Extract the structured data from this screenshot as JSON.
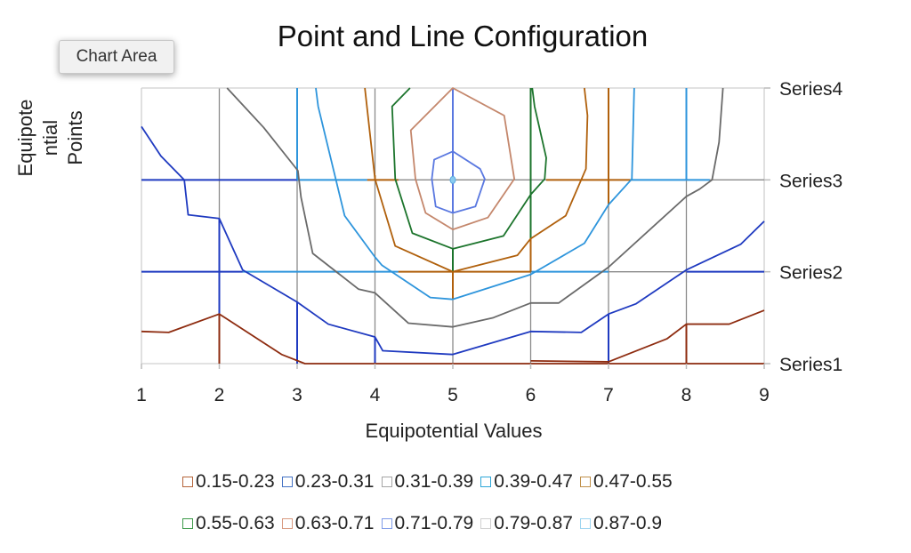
{
  "tooltip": "Chart Area",
  "chart_data": {
    "type": "contour",
    "title": "Point and Line Configuration",
    "xlabel": "Equipotential Values",
    "ylabel_lines": [
      "Equipote",
      "ntial",
      "Points"
    ],
    "x_ticks": [
      "1",
      "2",
      "3",
      "4",
      "5",
      "6",
      "7",
      "8",
      "9"
    ],
    "y_ticks": [
      "Series1",
      "Series2",
      "Series3",
      "Series4"
    ],
    "xlim": [
      1,
      9
    ],
    "ylim": [
      0,
      3
    ],
    "grid": true,
    "legend_position": "bottom",
    "levels": [
      {
        "label": "0.15-0.23",
        "color": "#B5643A",
        "line": "#8E2C10"
      },
      {
        "label": "0.23-0.31",
        "color": "#4472C4",
        "line": "#1F3AC0"
      },
      {
        "label": "0.31-0.39",
        "color": "#A5A5A5",
        "line": "#6A6A6A"
      },
      {
        "label": "0.39-0.47",
        "color": "#2EA7D8",
        "line": "#2E95DC"
      },
      {
        "label": "0.47-0.55",
        "color": "#C0904A",
        "line": "#B0600C"
      },
      {
        "label": "0.55-0.63",
        "color": "#3D9A4A",
        "line": "#1C742C"
      },
      {
        "label": "0.63-0.71",
        "color": "#D89A80",
        "line": "#C4876C"
      },
      {
        "label": "0.71-0.79",
        "color": "#7F9BE8",
        "line": "#5A78E0"
      },
      {
        "label": "0.79-0.87",
        "color": "#D0D0D0",
        "line": "#C8C8C8"
      },
      {
        "label": "0.87-0.9",
        "color": "#9ED5F0",
        "line": "#8ACBEF"
      }
    ],
    "contours": [
      {
        "level": 0,
        "closed": false,
        "points": [
          [
            1,
            0.35
          ],
          [
            1.35,
            0.34
          ],
          [
            2,
            0.54
          ],
          [
            2.8,
            0.1
          ],
          [
            3.1,
            0
          ],
          [
            9,
            0
          ]
        ]
      },
      {
        "level": 0,
        "closed": false,
        "points": [
          [
            6,
            0.03
          ],
          [
            7,
            0.02
          ],
          [
            7.75,
            0.27
          ],
          [
            8,
            0.43
          ],
          [
            8.55,
            0.43
          ],
          [
            9,
            0.58
          ]
        ]
      },
      {
        "level": 1,
        "closed": false,
        "points": [
          [
            1,
            2.58
          ],
          [
            1.25,
            2.26
          ],
          [
            1.55,
            2.0
          ],
          [
            1.6,
            1.62
          ],
          [
            2,
            1.58
          ],
          [
            2.3,
            1.02
          ],
          [
            3,
            0.67
          ],
          [
            3.4,
            0.43
          ],
          [
            4,
            0.29
          ],
          [
            4.1,
            0.14
          ],
          [
            5,
            0.1
          ],
          [
            6,
            0.35
          ],
          [
            6.65,
            0.34
          ],
          [
            7,
            0.54
          ],
          [
            7.35,
            0.65
          ],
          [
            8,
            1.02
          ],
          [
            8.7,
            1.3
          ],
          [
            9,
            1.55
          ]
        ]
      },
      {
        "level": 2,
        "closed": false,
        "points": [
          [
            2.1,
            3
          ],
          [
            2.57,
            2.57
          ],
          [
            3.01,
            2.1
          ],
          [
            3.05,
            1.81
          ],
          [
            3.2,
            1.2
          ],
          [
            3.79,
            0.81
          ],
          [
            4,
            0.77
          ],
          [
            4.43,
            0.44
          ],
          [
            5,
            0.4
          ],
          [
            5.52,
            0.5
          ],
          [
            6,
            0.66
          ],
          [
            6.36,
            0.66
          ],
          [
            7,
            1.05
          ],
          [
            8,
            1.82
          ],
          [
            8.17,
            1.9
          ],
          [
            8.33,
            2.0
          ],
          [
            8.42,
            2.41
          ],
          [
            8.47,
            3
          ]
        ]
      },
      {
        "level": 3,
        "closed": false,
        "points": [
          [
            3.24,
            3
          ],
          [
            3.27,
            2.8
          ],
          [
            3.61,
            1.61
          ],
          [
            4,
            1.16
          ],
          [
            4.09,
            1.07
          ],
          [
            4.71,
            0.72
          ],
          [
            5,
            0.7
          ],
          [
            6,
            0.97
          ],
          [
            6.69,
            1.31
          ],
          [
            7,
            1.73
          ],
          [
            7.3,
            2.01
          ],
          [
            7.33,
            3
          ]
        ]
      },
      {
        "level": 4,
        "closed": false,
        "points": [
          [
            3.87,
            3
          ],
          [
            4,
            2.01
          ],
          [
            4.26,
            1.28
          ],
          [
            5,
            1.0
          ],
          [
            5.83,
            1.18
          ],
          [
            6,
            1.36
          ],
          [
            6.45,
            1.61
          ],
          [
            6.71,
            2.12
          ],
          [
            6.73,
            2.7
          ],
          [
            6.69,
            3
          ]
        ]
      },
      {
        "level": 5,
        "closed": false,
        "points": [
          [
            4.45,
            3
          ],
          [
            4.22,
            2.8
          ],
          [
            4.26,
            2.01
          ],
          [
            4.48,
            1.42
          ],
          [
            5,
            1.25
          ],
          [
            5.65,
            1.39
          ],
          [
            6,
            1.84
          ],
          [
            6.18,
            2.01
          ],
          [
            6.2,
            2.24
          ],
          [
            6.05,
            2.8
          ],
          [
            6.02,
            3
          ]
        ]
      },
      {
        "level": 6,
        "closed": true,
        "points": [
          [
            5,
            3
          ],
          [
            5.66,
            2.7
          ],
          [
            5.79,
            2.01
          ],
          [
            5.45,
            1.59
          ],
          [
            5,
            1.46
          ],
          [
            4.65,
            1.64
          ],
          [
            4.52,
            2.01
          ],
          [
            4.46,
            2.54
          ]
        ]
      },
      {
        "level": 7,
        "closed": true,
        "points": [
          [
            5,
            2.31
          ],
          [
            5.35,
            2.12
          ],
          [
            5.41,
            2.01
          ],
          [
            5.29,
            1.71
          ],
          [
            5,
            1.64
          ],
          [
            4.78,
            1.71
          ],
          [
            4.73,
            2.01
          ],
          [
            4.76,
            2.22
          ]
        ]
      }
    ],
    "peak": {
      "x": 5,
      "y": 2,
      "level": 9
    },
    "grid_segments": [
      {
        "level": 1,
        "points": [
          [
            1,
            2
          ],
          [
            3,
            2
          ]
        ]
      },
      {
        "level": 3,
        "points": [
          [
            3,
            2
          ],
          [
            3.9,
            2
          ]
        ]
      },
      {
        "level": 4,
        "points": [
          [
            3.9,
            2
          ],
          [
            4.3,
            2
          ]
        ]
      },
      {
        "level": 4,
        "points": [
          [
            6.2,
            2
          ],
          [
            7.3,
            2
          ]
        ]
      },
      {
        "level": 3,
        "points": [
          [
            7.3,
            2
          ],
          [
            8.3,
            2
          ]
        ]
      },
      {
        "level": 1,
        "points": [
          [
            1,
            1
          ],
          [
            2.3,
            1
          ]
        ]
      },
      {
        "level": 3,
        "points": [
          [
            2.3,
            1
          ],
          [
            4.3,
            1
          ]
        ]
      },
      {
        "level": 4,
        "points": [
          [
            4.3,
            1
          ],
          [
            6,
            1
          ]
        ]
      },
      {
        "level": 3,
        "points": [
          [
            6,
            1
          ],
          [
            7,
            1
          ]
        ]
      },
      {
        "level": 1,
        "points": [
          [
            8,
            1
          ],
          [
            9,
            1
          ]
        ]
      },
      {
        "level": 1,
        "points": [
          [
            2,
            0
          ],
          [
            2,
            1.58
          ]
        ]
      },
      {
        "level": 1,
        "points": [
          [
            3,
            0
          ],
          [
            3,
            0.67
          ]
        ]
      },
      {
        "level": 3,
        "points": [
          [
            3,
            2
          ],
          [
            3,
            3
          ]
        ]
      },
      {
        "level": 1,
        "points": [
          [
            4,
            0
          ],
          [
            4,
            0.29
          ]
        ]
      },
      {
        "level": 4,
        "points": [
          [
            4,
            2
          ],
          [
            4,
            2.05
          ]
        ]
      },
      {
        "level": 4,
        "points": [
          [
            5,
            0.7
          ],
          [
            5,
            1.0
          ]
        ]
      },
      {
        "level": 5,
        "points": [
          [
            5,
            1.0
          ],
          [
            5,
            1.25
          ]
        ]
      },
      {
        "level": 7,
        "points": [
          [
            5,
            1.64
          ],
          [
            5,
            3
          ]
        ]
      },
      {
        "level": 4,
        "points": [
          [
            6,
            1.0
          ],
          [
            6,
            1.36
          ]
        ]
      },
      {
        "level": 5,
        "points": [
          [
            6,
            1.36
          ],
          [
            6,
            3
          ]
        ]
      },
      {
        "level": 1,
        "points": [
          [
            7,
            0
          ],
          [
            7,
            0.54
          ]
        ]
      },
      {
        "level": 4,
        "points": [
          [
            7,
            1.73
          ],
          [
            7,
            3
          ]
        ]
      },
      {
        "level": 3,
        "points": [
          [
            8,
            2
          ],
          [
            8,
            3
          ]
        ]
      },
      {
        "level": 0,
        "points": [
          [
            2,
            0
          ],
          [
            2,
            0.54
          ]
        ]
      },
      {
        "level": 0,
        "points": [
          [
            8,
            0
          ],
          [
            8,
            0.43
          ]
        ]
      }
    ]
  }
}
